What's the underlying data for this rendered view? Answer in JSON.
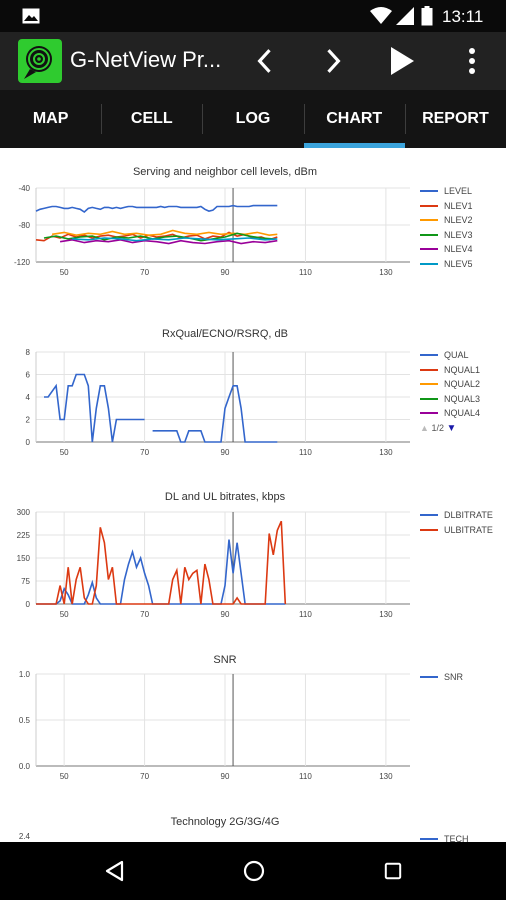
{
  "status_bar": {
    "time": "13:11",
    "icons": [
      "image-icon",
      "wifi-icon",
      "cell-signal-icon",
      "battery-icon"
    ]
  },
  "app_bar": {
    "title": "G-NetView Pr...",
    "actions": [
      "chevron-left-icon",
      "chevron-right-icon",
      "play-icon",
      "overflow-menu-icon"
    ]
  },
  "tabs": [
    {
      "label": "MAP",
      "active": false
    },
    {
      "label": "CELL",
      "active": false
    },
    {
      "label": "LOG",
      "active": false
    },
    {
      "label": "CHART",
      "active": true
    },
    {
      "label": "REPORT",
      "active": false
    }
  ],
  "colors": {
    "accent": "#3ba4dc",
    "blue": "#3366cc",
    "red": "#dc3912",
    "orange": "#ff9900",
    "green": "#109618",
    "purple": "#990099",
    "teal": "#0099c6"
  },
  "nav_bar": {
    "buttons": [
      "back-icon",
      "home-icon",
      "recents-icon"
    ]
  },
  "chart_data": [
    {
      "type": "line",
      "title": "Serving and neighbor cell levels, dBm",
      "ylim": [
        -120,
        -40
      ],
      "yticks": [
        -40,
        -80,
        -120
      ],
      "xticks": [
        50,
        70,
        90,
        110,
        130
      ],
      "xlim": [
        43,
        136
      ],
      "cursor_x": 92,
      "series": [
        {
          "name": "LEVEL",
          "color": "#3366cc",
          "x": [
            43,
            44,
            45,
            46,
            47,
            48,
            49,
            50,
            51,
            52,
            53,
            54,
            55,
            56,
            57,
            58,
            59,
            60,
            61,
            62,
            63,
            64,
            65,
            66,
            67,
            68,
            69,
            70,
            71,
            72,
            73,
            74,
            75,
            76,
            77,
            78,
            79,
            80,
            81,
            82,
            83,
            84,
            85,
            86,
            87,
            88,
            89,
            90,
            91,
            92,
            93,
            94,
            95,
            96,
            97,
            98,
            99,
            100,
            101,
            102,
            103
          ],
          "values": [
            -65,
            -63,
            -62,
            -61,
            -60,
            -60,
            -61,
            -62,
            -62,
            -61,
            -62,
            -63,
            -66,
            -62,
            -61,
            -62,
            -63,
            -61,
            -61,
            -62,
            -61,
            -62,
            -61,
            -60,
            -60,
            -61,
            -61,
            -61,
            -61,
            -61,
            -61,
            -60,
            -61,
            -60,
            -60,
            -60,
            -61,
            -61,
            -61,
            -61,
            -61,
            -60,
            -63,
            -65,
            -64,
            -60,
            -60,
            -60,
            -60,
            -59,
            -60,
            -60,
            -60,
            -60,
            -59,
            -59,
            -59,
            -59,
            -59,
            -59,
            -59
          ]
        },
        {
          "name": "NLEV1",
          "color": "#dc3912",
          "x": [
            43,
            45,
            47,
            49,
            51,
            53,
            55,
            57,
            59,
            61,
            63,
            65,
            67,
            69,
            71,
            73,
            75,
            77,
            79,
            81,
            83,
            85,
            87,
            89,
            91,
            93,
            95,
            97,
            99,
            101,
            103
          ],
          "values": [
            -96,
            -97,
            -92,
            -94,
            -90,
            -93,
            -91,
            -94,
            -92,
            -91,
            -93,
            -92,
            -90,
            -94,
            -91,
            -93,
            -92,
            -90,
            -94,
            -92,
            -91,
            -95,
            -92,
            -93,
            -88,
            -92,
            -90,
            -94,
            -93,
            -96,
            -93
          ]
        },
        {
          "name": "NLEV2",
          "color": "#ff9900",
          "x": [
            47,
            50,
            53,
            56,
            59,
            62,
            65,
            68,
            71,
            74,
            77,
            80,
            83,
            86,
            89,
            92,
            95,
            98,
            101,
            103
          ],
          "values": [
            -90,
            -88,
            -91,
            -89,
            -90,
            -87,
            -90,
            -89,
            -91,
            -90,
            -86,
            -89,
            -90,
            -88,
            -90,
            -89,
            -90,
            -88,
            -91,
            -90
          ]
        },
        {
          "name": "NLEV3",
          "color": "#109618",
          "x": [
            45,
            48,
            51,
            54,
            57,
            60,
            63,
            66,
            69,
            72,
            75,
            78,
            81,
            84,
            87,
            90,
            93,
            96,
            99,
            102
          ],
          "values": [
            -94,
            -92,
            -95,
            -93,
            -92,
            -96,
            -93,
            -94,
            -92,
            -95,
            -93,
            -92,
            -94,
            -97,
            -95,
            -93,
            -89,
            -92,
            -94,
            -95
          ]
        },
        {
          "name": "NLEV4",
          "color": "#990099",
          "x": [
            49,
            52,
            55,
            58,
            61,
            64,
            67,
            70,
            73,
            76,
            79,
            82,
            85,
            88,
            91,
            94,
            97,
            100,
            103
          ],
          "values": [
            -98,
            -96,
            -99,
            -97,
            -98,
            -96,
            -99,
            -97,
            -98,
            -100,
            -97,
            -99,
            -100,
            -98,
            -97,
            -100,
            -98,
            -99,
            -97
          ]
        },
        {
          "name": "NLEV5",
          "color": "#0099c6",
          "x": [
            52,
            56,
            60,
            64,
            68,
            72,
            76,
            80,
            84,
            88,
            92,
            96,
            100,
            103
          ],
          "values": [
            -95,
            -96,
            -94,
            -95,
            -97,
            -95,
            -96,
            -94,
            -95,
            -96,
            -95,
            -94,
            -96,
            -95
          ]
        }
      ]
    },
    {
      "type": "line",
      "title": "RxQual/ECNO/RSRQ, dB",
      "ylim": [
        0,
        8
      ],
      "yticks": [
        8,
        6,
        4,
        2,
        0
      ],
      "xticks": [
        50,
        70,
        90,
        110,
        130
      ],
      "xlim": [
        43,
        136
      ],
      "cursor_x": 92,
      "series": [
        {
          "name": "QUAL",
          "color": "#3366cc",
          "x": [
            45,
            46,
            48,
            49,
            50,
            51,
            52,
            53,
            54,
            55,
            56,
            57,
            58,
            59,
            60,
            61,
            62,
            63,
            64,
            65,
            66,
            67,
            68,
            69,
            70,
            71,
            72,
            73,
            74,
            75,
            76,
            77,
            78,
            79,
            80,
            81,
            82,
            83,
            84,
            85,
            86,
            87,
            88,
            89,
            90,
            91,
            92,
            93,
            94,
            95,
            96,
            97,
            98,
            99,
            100,
            101,
            102,
            103
          ],
          "values": [
            4,
            4,
            5,
            2,
            2,
            5,
            5,
            6,
            6,
            6,
            5,
            0,
            3,
            5,
            5,
            3,
            0,
            2,
            2,
            2,
            2,
            2,
            2,
            2,
            2,
            null,
            1,
            1,
            1,
            1,
            1,
            1,
            1,
            0,
            0,
            1,
            1,
            1,
            1,
            0,
            0,
            0,
            0,
            0,
            3,
            4,
            5,
            5,
            3,
            0,
            0,
            0,
            0,
            0,
            0,
            0,
            0,
            0
          ]
        }
      ],
      "legend_extra": [
        "NQUAL1",
        "NQUAL2",
        "NQUAL3",
        "NQUAL4"
      ],
      "legend_extra_colors": [
        "#dc3912",
        "#ff9900",
        "#109618",
        "#990099"
      ],
      "legend_page": "1/2"
    },
    {
      "type": "line",
      "title": "DL and UL bitrates, kbps",
      "ylim": [
        0,
        300
      ],
      "yticks": [
        300,
        225,
        150,
        75,
        0
      ],
      "xticks": [
        50,
        70,
        90,
        110,
        130
      ],
      "xlim": [
        43,
        136
      ],
      "cursor_x": 92,
      "series": [
        {
          "name": "DLBITRATE",
          "color": "#3366cc",
          "x": [
            43,
            44,
            45,
            46,
            47,
            48,
            49,
            50,
            51,
            52,
            53,
            54,
            55,
            56,
            57,
            58,
            59,
            60,
            61,
            62,
            63,
            64,
            65,
            66,
            67,
            68,
            69,
            70,
            71,
            72,
            73,
            74,
            75,
            76,
            77,
            78,
            79,
            80,
            81,
            82,
            83,
            84,
            85,
            86,
            87,
            88,
            89,
            90,
            91,
            92,
            93,
            94,
            95,
            96,
            97,
            98,
            99,
            100,
            101,
            102,
            103,
            104,
            105
          ],
          "values": [
            0,
            0,
            0,
            0,
            0,
            0,
            10,
            50,
            30,
            0,
            0,
            0,
            0,
            30,
            70,
            20,
            0,
            0,
            0,
            0,
            0,
            0,
            80,
            130,
            170,
            120,
            150,
            100,
            60,
            0,
            0,
            0,
            0,
            0,
            0,
            0,
            0,
            0,
            0,
            0,
            0,
            0,
            0,
            0,
            0,
            0,
            0,
            60,
            210,
            100,
            200,
            100,
            0,
            0,
            0,
            0,
            0,
            0,
            0,
            0,
            0,
            0,
            0
          ]
        },
        {
          "name": "ULBITRATE",
          "color": "#dc3912",
          "x": [
            43,
            44,
            45,
            46,
            47,
            48,
            49,
            50,
            51,
            52,
            53,
            54,
            55,
            56,
            57,
            58,
            59,
            60,
            61,
            62,
            63,
            64,
            65,
            66,
            67,
            68,
            69,
            70,
            71,
            72,
            73,
            74,
            75,
            76,
            77,
            78,
            79,
            80,
            81,
            82,
            83,
            84,
            85,
            86,
            87,
            88,
            89,
            90,
            91,
            92,
            93,
            94,
            95,
            96,
            97,
            98,
            99,
            100,
            101,
            102,
            103,
            104,
            105
          ],
          "values": [
            0,
            0,
            0,
            0,
            0,
            0,
            60,
            0,
            120,
            0,
            80,
            120,
            20,
            0,
            0,
            60,
            250,
            200,
            80,
            120,
            0,
            0,
            0,
            0,
            0,
            0,
            0,
            0,
            0,
            0,
            0,
            0,
            0,
            0,
            80,
            110,
            0,
            120,
            80,
            100,
            110,
            0,
            130,
            80,
            0,
            0,
            0,
            0,
            0,
            0,
            20,
            0,
            0,
            0,
            0,
            0,
            0,
            0,
            230,
            160,
            240,
            270,
            0
          ]
        }
      ]
    },
    {
      "type": "line",
      "title": "SNR",
      "ylim": [
        0,
        1
      ],
      "yticks": [
        "1.0",
        "0.5",
        "0.0"
      ],
      "xticks": [
        50,
        70,
        90,
        110,
        130
      ],
      "xlim": [
        43,
        136
      ],
      "cursor_x": 92,
      "series": [
        {
          "name": "SNR",
          "color": "#3366cc",
          "x": [],
          "values": []
        }
      ]
    },
    {
      "type": "line",
      "title": "Technology 2G/3G/4G",
      "yticks": [
        "2.4"
      ],
      "series": [
        {
          "name": "TECH",
          "color": "#3366cc",
          "x": [],
          "values": []
        }
      ]
    }
  ]
}
